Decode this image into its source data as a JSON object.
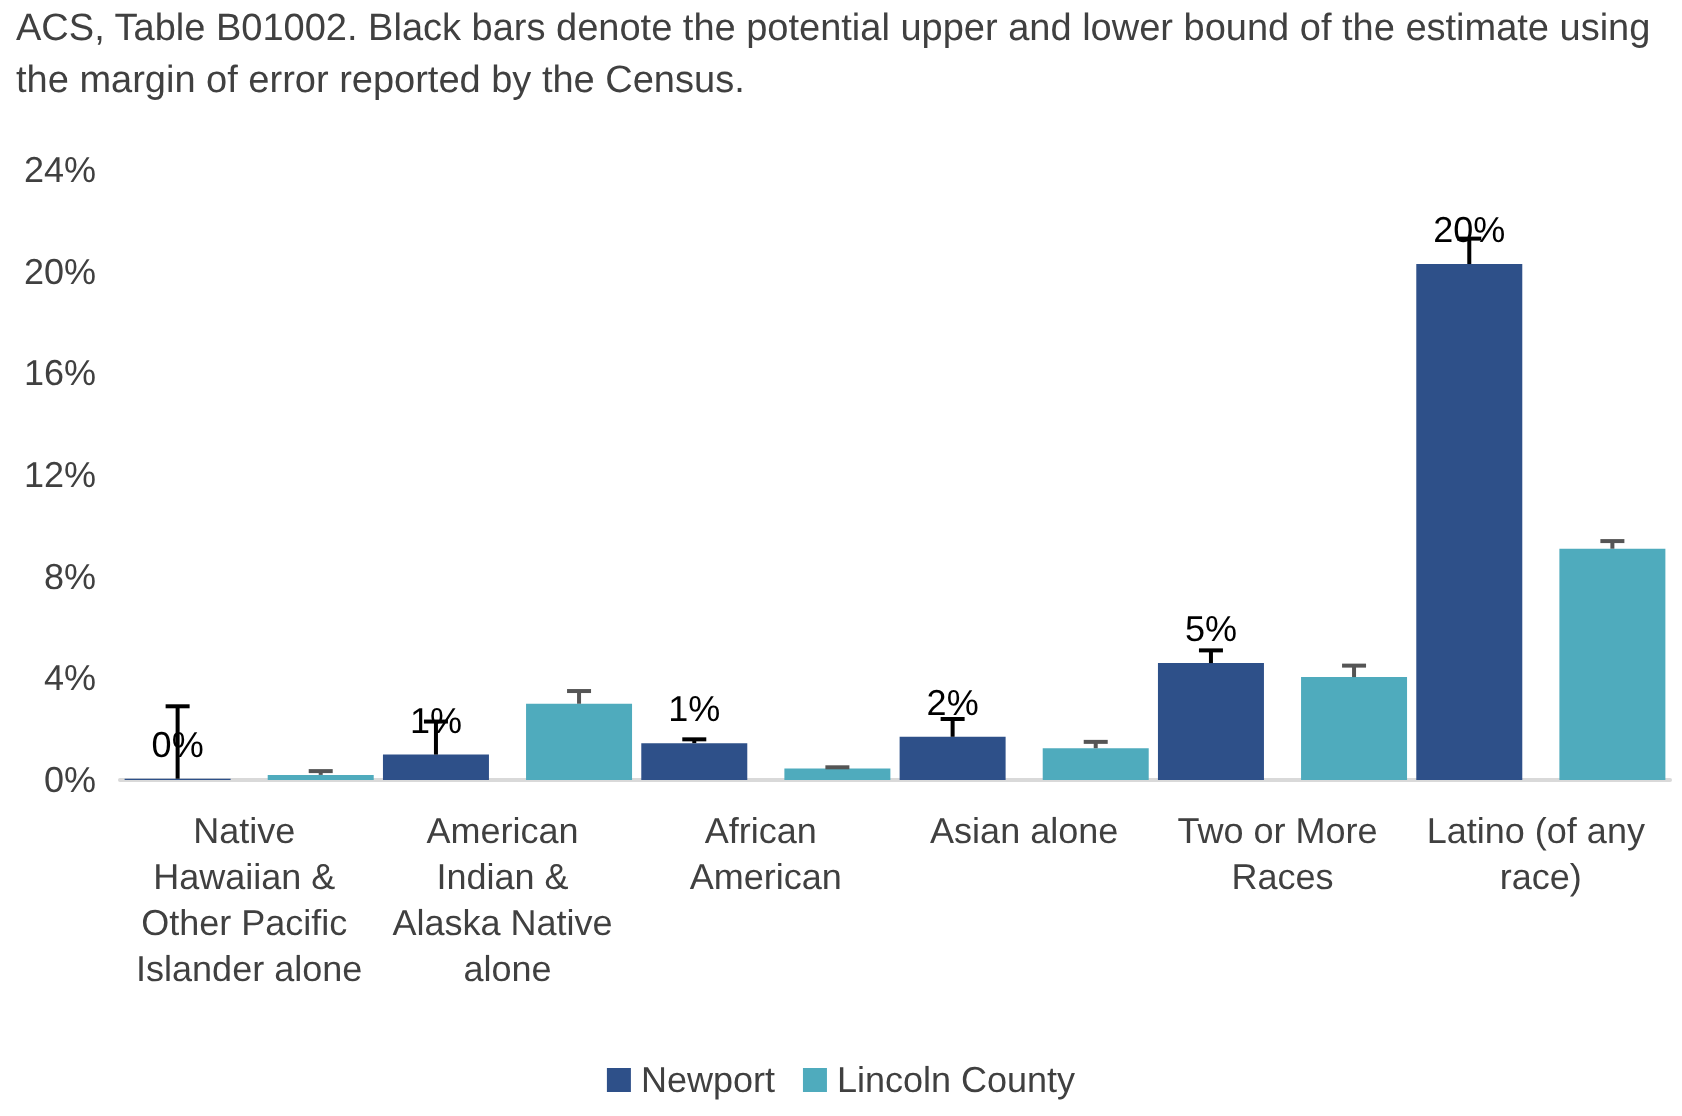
{
  "chart_data": {
    "type": "bar",
    "annotations": [
      "ACS, Table B01002. Black bars denote the potential upper and lower bound of the estimate using the margin of error reported by the Census."
    ],
    "categories": [
      "Native Hawaiian & Other Pacific Islander alone",
      "American Indian & Alaska Native alone",
      "African American",
      "Asian alone",
      "Two or More Races",
      "Latino (of any race)"
    ],
    "series": [
      {
        "name": "Newport",
        "color": "#2e5089",
        "values": [
          0.05,
          1.0,
          1.45,
          1.7,
          4.6,
          20.3
        ],
        "errors": [
          [
            0.05,
            2.9
          ],
          [
            1.0,
            2.3
          ],
          [
            1.45,
            1.6
          ],
          [
            1.7,
            2.4
          ],
          [
            4.6,
            5.1
          ],
          [
            20.3,
            21.3
          ]
        ],
        "value_labels": [
          "0%",
          "1%",
          "1%",
          "2%",
          "5%",
          "20%"
        ]
      },
      {
        "name": "Lincoln County",
        "color": "#4fabbd",
        "values": [
          0.2,
          3.0,
          0.45,
          1.25,
          4.05,
          9.1
        ],
        "errors": [
          [
            0.2,
            0.35
          ],
          [
            3.0,
            3.5
          ],
          [
            0.45,
            0.5
          ],
          [
            1.25,
            1.5
          ],
          [
            4.05,
            4.5
          ],
          [
            9.1,
            9.4
          ]
        ]
      }
    ],
    "ylim": [
      0,
      24
    ],
    "yticks": [
      {
        "value": 0,
        "label": "0%"
      },
      {
        "value": 4,
        "label": "4%"
      },
      {
        "value": 8,
        "label": "8%"
      },
      {
        "value": 12,
        "label": "12%"
      },
      {
        "value": 16,
        "label": "16%"
      },
      {
        "value": 20,
        "label": "20%"
      },
      {
        "value": 24,
        "label": "24%"
      }
    ],
    "grid": false,
    "legend": "bottom"
  }
}
